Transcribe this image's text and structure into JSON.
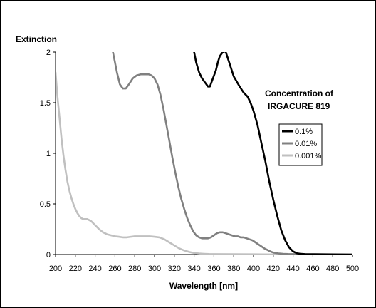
{
  "chart_data": {
    "type": "line",
    "title": "",
    "ylabel": "Extinction",
    "xlabel": "Wavelength [nm]",
    "xlim": [
      200,
      500
    ],
    "ylim": [
      0,
      2
    ],
    "x_ticks": [
      200,
      220,
      240,
      260,
      280,
      300,
      320,
      340,
      360,
      380,
      400,
      420,
      440,
      460,
      480,
      500
    ],
    "y_ticks": [
      0,
      0.5,
      1,
      1.5,
      2
    ],
    "y_tick_labels": [
      "0",
      "0.5",
      "1",
      "1.5",
      "2"
    ],
    "grid": false,
    "annotation": [
      "Concentration of",
      "IRGACURE 819"
    ],
    "legend_placement": "right",
    "series": [
      {
        "name": "0.1%",
        "color": "#000000",
        "x": [
          340,
          342,
          345,
          348,
          351,
          354,
          356,
          359,
          362,
          364,
          366,
          369,
          370
        ],
        "y": [
          2.0,
          1.9,
          1.8,
          1.74,
          1.7,
          1.66,
          1.66,
          1.74,
          1.82,
          1.9,
          1.96,
          2.0,
          2.0
        ],
        "x2": [
          372,
          375,
          380,
          386,
          390,
          394,
          397,
          400,
          404,
          408,
          412,
          416,
          420,
          424,
          428,
          432,
          436,
          440,
          444,
          448,
          452,
          500
        ],
        "y2": [
          2.0,
          1.91,
          1.76,
          1.66,
          1.6,
          1.56,
          1.5,
          1.42,
          1.28,
          1.1,
          0.92,
          0.72,
          0.54,
          0.38,
          0.24,
          0.14,
          0.07,
          0.03,
          0.012,
          0.006,
          0.004,
          0.0
        ]
      },
      {
        "name": "0.01%",
        "color": "#808080",
        "x": [
          258,
          262,
          265,
          268,
          271,
          274,
          278,
          282,
          286,
          290,
          294,
          297,
          300,
          303,
          306,
          309,
          312,
          315,
          318,
          321,
          324,
          327,
          330,
          333,
          336,
          339,
          342,
          345,
          348,
          351,
          354,
          357,
          360,
          363,
          366,
          369,
          372,
          375,
          378,
          381,
          384,
          387,
          390,
          393,
          396,
          399,
          402,
          405,
          408,
          411,
          414,
          417,
          420,
          423,
          426,
          430,
          435,
          440,
          445,
          450,
          460,
          470,
          480,
          490,
          500
        ],
        "y": [
          2.0,
          1.8,
          1.68,
          1.64,
          1.64,
          1.68,
          1.74,
          1.77,
          1.78,
          1.78,
          1.78,
          1.77,
          1.74,
          1.68,
          1.58,
          1.44,
          1.28,
          1.12,
          0.96,
          0.81,
          0.67,
          0.55,
          0.45,
          0.36,
          0.29,
          0.23,
          0.19,
          0.17,
          0.16,
          0.16,
          0.16,
          0.17,
          0.19,
          0.21,
          0.22,
          0.22,
          0.21,
          0.2,
          0.19,
          0.18,
          0.18,
          0.17,
          0.17,
          0.16,
          0.15,
          0.14,
          0.12,
          0.1,
          0.08,
          0.06,
          0.045,
          0.03,
          0.02,
          0.014,
          0.01,
          0.007,
          0.005,
          0.004,
          0.003,
          0.002,
          0.001,
          0.0,
          0.0,
          0.0,
          0.0
        ]
      },
      {
        "name": "0.001%",
        "color": "#c0c0c0",
        "x": [
          200,
          202,
          204,
          206,
          208,
          210,
          212,
          214,
          216,
          218,
          220,
          222,
          224,
          226,
          228,
          230,
          232,
          234,
          236,
          238,
          240,
          244,
          248,
          252,
          256,
          260,
          264,
          268,
          272,
          276,
          280,
          285,
          290,
          295,
          300,
          305,
          310,
          315,
          320,
          325,
          330,
          335,
          340,
          345,
          350,
          355,
          360,
          380,
          400,
          420,
          440,
          460,
          480,
          500
        ],
        "y": [
          1.8,
          1.55,
          1.35,
          1.15,
          0.98,
          0.84,
          0.72,
          0.63,
          0.56,
          0.5,
          0.45,
          0.41,
          0.38,
          0.36,
          0.35,
          0.35,
          0.35,
          0.34,
          0.33,
          0.31,
          0.29,
          0.25,
          0.22,
          0.2,
          0.19,
          0.18,
          0.175,
          0.17,
          0.17,
          0.175,
          0.18,
          0.18,
          0.18,
          0.18,
          0.175,
          0.17,
          0.15,
          0.12,
          0.09,
          0.06,
          0.04,
          0.025,
          0.015,
          0.01,
          0.007,
          0.005,
          0.004,
          0.003,
          0.002,
          0.001,
          0.0,
          0.0,
          0.0,
          0.0
        ]
      }
    ]
  }
}
